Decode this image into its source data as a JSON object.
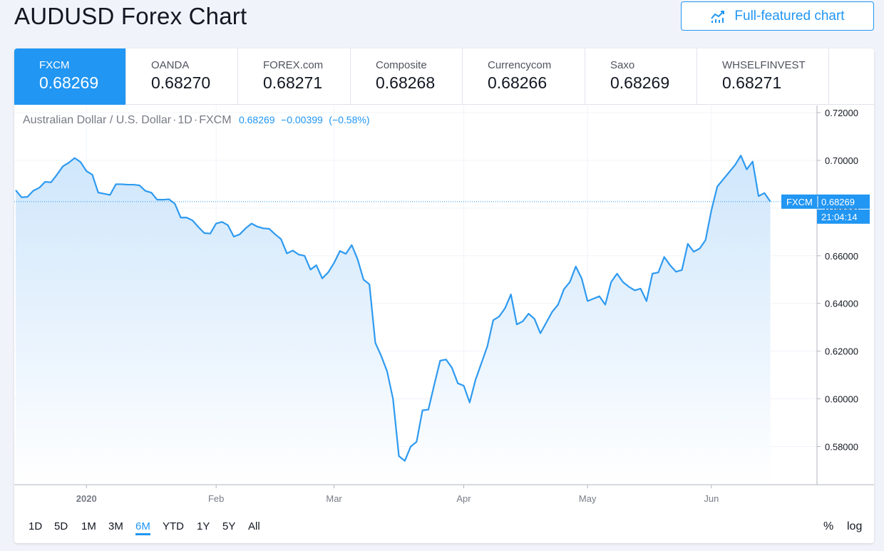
{
  "header": {
    "title": "AUDUSD Forex Chart",
    "full_chart_label": "Full-featured chart"
  },
  "tabs": [
    {
      "name": "FXCM",
      "value": "0.68269",
      "active": true
    },
    {
      "name": "OANDA",
      "value": "0.68270"
    },
    {
      "name": "FOREX.com",
      "value": "0.68271"
    },
    {
      "name": "Composite",
      "value": "0.68268"
    },
    {
      "name": "Currencycom",
      "value": "0.68266"
    },
    {
      "name": "Saxo",
      "value": "0.68269"
    },
    {
      "name": "WHSELFINVEST",
      "value": "0.68271"
    }
  ],
  "legend": {
    "symbol": "Australian Dollar / U.S. Dollar",
    "interval": "1D",
    "source": "FXCM",
    "price": "0.68269",
    "change": "−0.00399",
    "change_pct": "(−0.58%)"
  },
  "price_label": {
    "name": "FXCM",
    "value": "0.68269",
    "time": "21:04:14"
  },
  "colors": {
    "accent": "#2196f3",
    "line": "#2e9af0",
    "fill_top": "#cde5fb",
    "fill_bottom": "#ffffff"
  },
  "chart_data": {
    "type": "area",
    "title": "",
    "xlabel": "",
    "ylabel": "",
    "ylim": [
      0.564,
      0.723
    ],
    "grid": true,
    "y_ticks": [
      "0.72000",
      "0.70000",
      "0.68000",
      "0.66000",
      "0.64000",
      "0.62000",
      "0.60000",
      "0.58000"
    ],
    "x_ticks": [
      {
        "label": "2020",
        "index": 12
      },
      {
        "label": "Feb",
        "index": 34
      },
      {
        "label": "Mar",
        "index": 54
      },
      {
        "label": "Apr",
        "index": 76
      },
      {
        "label": "May",
        "index": 97
      },
      {
        "label": "Jun",
        "index": 118
      }
    ],
    "series": [
      {
        "values": [
          0.6875,
          0.6845,
          0.6847,
          0.6873,
          0.6885,
          0.691,
          0.6908,
          0.694,
          0.6975,
          0.699,
          0.701,
          0.6993,
          0.6955,
          0.694,
          0.6865,
          0.686,
          0.6855,
          0.69,
          0.69,
          0.6898,
          0.6898,
          0.6895,
          0.6872,
          0.6865,
          0.6835,
          0.6835,
          0.6837,
          0.6818,
          0.676,
          0.676,
          0.6748,
          0.672,
          0.6695,
          0.6693,
          0.6735,
          0.6742,
          0.6728,
          0.668,
          0.669,
          0.6715,
          0.6735,
          0.6722,
          0.6715,
          0.6713,
          0.669,
          0.667,
          0.661,
          0.6622,
          0.6605,
          0.66,
          0.6542,
          0.656,
          0.6505,
          0.653,
          0.657,
          0.662,
          0.6608,
          0.6645,
          0.6585,
          0.65,
          0.648,
          0.6235,
          0.618,
          0.6115,
          0.6,
          0.576,
          0.574,
          0.58,
          0.582,
          0.5952,
          0.5955,
          0.606,
          0.616,
          0.6165,
          0.613,
          0.6065,
          0.6055,
          0.5985,
          0.608,
          0.615,
          0.622,
          0.633,
          0.6345,
          0.638,
          0.6438,
          0.6312,
          0.6325,
          0.6357,
          0.6335,
          0.6275,
          0.632,
          0.6365,
          0.6395,
          0.646,
          0.649,
          0.6555,
          0.6505,
          0.641,
          0.642,
          0.643,
          0.6395,
          0.649,
          0.6525,
          0.649,
          0.647,
          0.6455,
          0.6462,
          0.641,
          0.6525,
          0.653,
          0.6595,
          0.656,
          0.6533,
          0.654,
          0.665,
          0.6617,
          0.663,
          0.6665,
          0.679,
          0.689,
          0.692,
          0.695,
          0.698,
          0.702,
          0.6962,
          0.6995,
          0.685,
          0.6863,
          0.6827
        ]
      }
    ]
  },
  "timeframes": [
    "1D",
    "5D",
    "1M",
    "3M",
    "6M",
    "YTD",
    "1Y",
    "5Y",
    "All"
  ],
  "active_timeframe": "6M",
  "scale_buttons": {
    "percent": "%",
    "log": "log"
  }
}
